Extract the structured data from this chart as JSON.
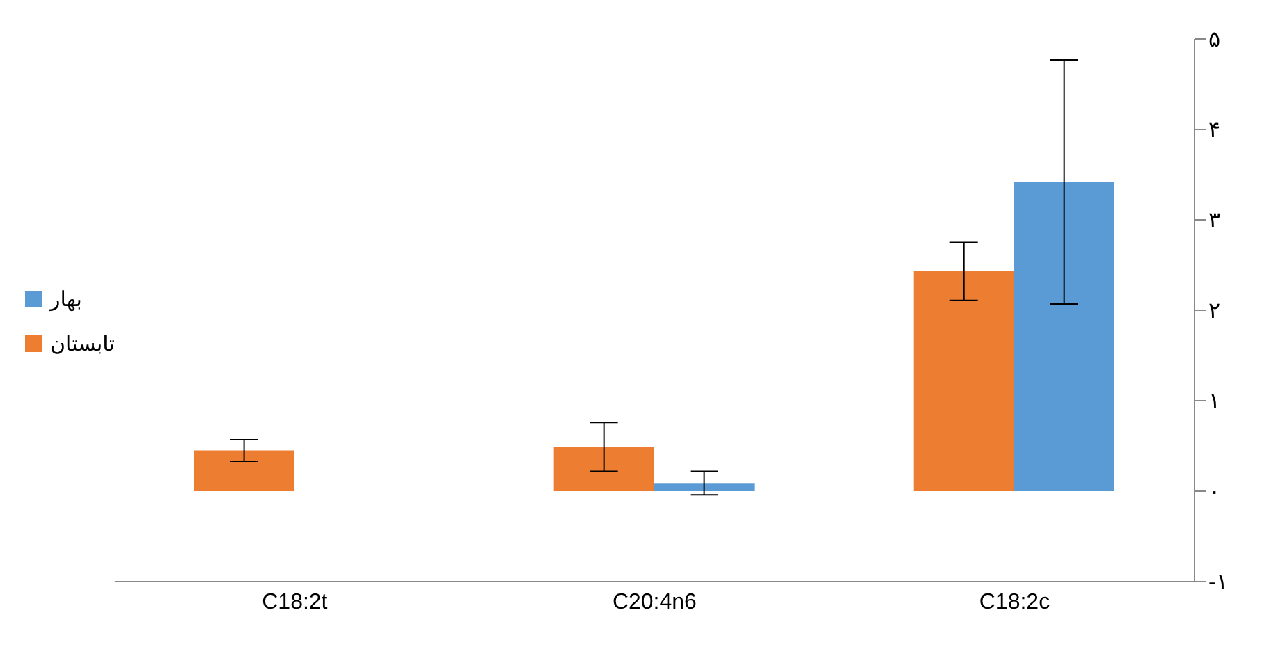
{
  "chart_data": {
    "type": "bar",
    "categories": [
      "C18:2t",
      "C20:4n6",
      "C18:2c"
    ],
    "series": [
      {
        "name": "تابستان",
        "color": "#ed7d31",
        "values": [
          0.45,
          0.49,
          2.43
        ],
        "errors": [
          0.12,
          0.27,
          0.32
        ]
      },
      {
        "name": "بهار",
        "color": "#5b9bd5",
        "values": [
          null,
          0.09,
          3.42
        ],
        "errors": [
          null,
          0.13,
          1.35
        ]
      }
    ],
    "ylim": [
      -1,
      5
    ],
    "yticks": [
      {
        "value": -1,
        "label": "-۱"
      },
      {
        "value": 0,
        "label": "۰"
      },
      {
        "value": 1,
        "label": "۱"
      },
      {
        "value": 2,
        "label": "۲"
      },
      {
        "value": 3,
        "label": "۳"
      },
      {
        "value": 4,
        "label": "۴"
      },
      {
        "value": 5,
        "label": "۵"
      }
    ],
    "legend": "left",
    "grid": false
  }
}
